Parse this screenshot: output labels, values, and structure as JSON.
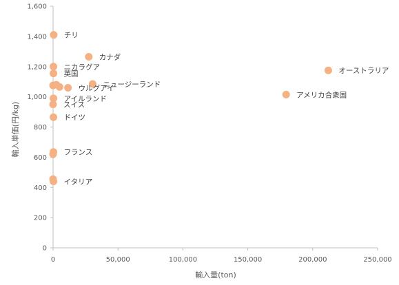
{
  "chart_data": {
    "type": "scatter",
    "xlabel": "輸入量(ton)",
    "ylabel": "輸入単価(円/kg)",
    "xlim": [
      0,
      250000
    ],
    "ylim": [
      0,
      1600
    ],
    "x_ticks": [
      0,
      50000,
      100000,
      150000,
      200000,
      250000
    ],
    "x_tick_labels": [
      "0",
      "50,000",
      "100,000",
      "150,000",
      "200,000",
      "250,000"
    ],
    "y_ticks": [
      0,
      200,
      400,
      600,
      800,
      1000,
      1200,
      1400,
      1600
    ],
    "y_tick_labels": [
      "0",
      "200",
      "400",
      "600",
      "800",
      "1,000",
      "1,200",
      "1,400",
      "1,600"
    ],
    "grid": false,
    "marker_color": "#F4B183",
    "points": [
      {
        "x": 500,
        "y": 1410,
        "label": "チリ"
      },
      {
        "x": 27500,
        "y": 1265,
        "label": "カナダ"
      },
      {
        "x": 300,
        "y": 1200,
        "label": "ニカラグア"
      },
      {
        "x": 212000,
        "y": 1175,
        "label": "オーストラリア"
      },
      {
        "x": 300,
        "y": 1155,
        "label": "英国"
      },
      {
        "x": 30500,
        "y": 1085,
        "label": "ニュージーランド"
      },
      {
        "x": 11500,
        "y": 1060,
        "label": "ウルグアイ"
      },
      {
        "x": 179500,
        "y": 1015,
        "label": "アメリカ合衆国"
      },
      {
        "x": 300,
        "y": 990,
        "label": "アイルランド"
      },
      {
        "x": 0,
        "y": 950,
        "label": "スイス"
      },
      {
        "x": 300,
        "y": 865,
        "label": "ドイツ"
      },
      {
        "x": 300,
        "y": 635,
        "label": "フランス"
      },
      {
        "x": 300,
        "y": 440,
        "label": "イタリア"
      },
      {
        "x": 0,
        "y": 1075,
        "label": ""
      },
      {
        "x": 2500,
        "y": 1080,
        "label": ""
      },
      {
        "x": 5000,
        "y": 1065,
        "label": ""
      },
      {
        "x": 0,
        "y": 620,
        "label": ""
      },
      {
        "x": 0,
        "y": 455,
        "label": ""
      }
    ],
    "labels": [
      {
        "text": "チリ",
        "x": 500,
        "y": 1410
      },
      {
        "text": "カナダ",
        "x": 27500,
        "y": 1265
      },
      {
        "text": "ニカラグア",
        "x": 300,
        "y": 1200
      },
      {
        "text": "オーストラリア",
        "x": 212000,
        "y": 1175
      },
      {
        "text": "英国",
        "x": 300,
        "y": 1155
      },
      {
        "text": "ニュージーランド",
        "x": 30500,
        "y": 1085
      },
      {
        "text": "ウルグアイ",
        "x": 11500,
        "y": 1060
      },
      {
        "text": "アメリカ合衆国",
        "x": 179500,
        "y": 1015
      },
      {
        "text": "アイルランド",
        "x": 300,
        "y": 990
      },
      {
        "text": "スイス",
        "x": 0,
        "y": 950
      },
      {
        "text": "ドイツ",
        "x": 300,
        "y": 865
      },
      {
        "text": "フランス",
        "x": 300,
        "y": 635
      },
      {
        "text": "イタリア",
        "x": 300,
        "y": 440
      }
    ]
  }
}
